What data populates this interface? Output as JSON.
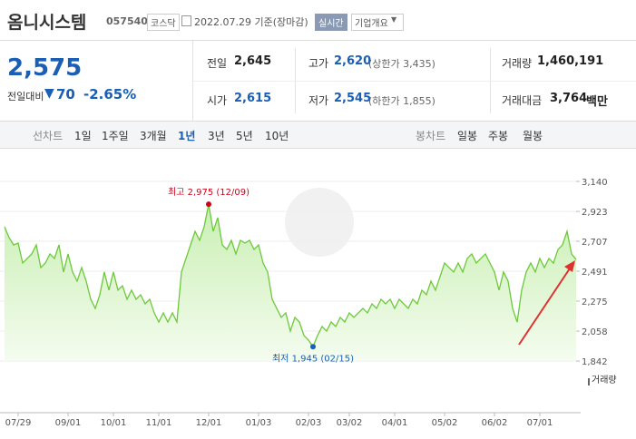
{
  "header": {
    "name": "옴니시스템",
    "code": "057540",
    "market": "코스닥",
    "date": "2022.07.29 기준(장마감)",
    "realtime": "실시간",
    "company": "기업개요"
  },
  "price": {
    "current": "2,575",
    "change_label": "전일대비",
    "change": "70",
    "change_pct": "-2.65%"
  },
  "stats": [
    {
      "label": "전일",
      "value": "2,645"
    },
    {
      "label": "고가",
      "value": "2,620",
      "note": "(상한가 3,435)"
    },
    {
      "label": "거래량",
      "value": "1,460,191"
    },
    {
      "label": "시가",
      "value": "2,615"
    },
    {
      "label": "저가",
      "value": "2,545",
      "note": "(하한가 1,855)"
    },
    {
      "label": "거래대금",
      "value": "3,764",
      "unit": "백만"
    }
  ],
  "tabs": {
    "line_label": "선차트",
    "periods": [
      "1일",
      "1주일",
      "3개월",
      "1년",
      "3년",
      "5년",
      "10년"
    ],
    "active": "1년",
    "candle_label": "봉차트",
    "candles": [
      "일봉",
      "주봉",
      "월봉"
    ]
  },
  "chart_data": {
    "type": "line",
    "color": "#6cc93a",
    "values": [
      2812,
      2734,
      2681,
      2694,
      2550,
      2583,
      2616,
      2681,
      2517,
      2550,
      2616,
      2583,
      2681,
      2485,
      2616,
      2485,
      2419,
      2517,
      2419,
      2288,
      2222,
      2321,
      2485,
      2354,
      2485,
      2354,
      2386,
      2288,
      2354,
      2288,
      2321,
      2255,
      2288,
      2190,
      2124,
      2190,
      2124,
      2190,
      2124,
      2485,
      2583,
      2681,
      2779,
      2714,
      2812,
      2975,
      2779,
      2878,
      2681,
      2648,
      2714,
      2616,
      2714,
      2694,
      2714,
      2648,
      2681,
      2550,
      2485,
      2288,
      2222,
      2157,
      2190,
      2058,
      2157,
      2124,
      2026,
      1993,
      1945,
      2026,
      2091,
      2058,
      2124,
      2091,
      2157,
      2124,
      2190,
      2157,
      2190,
      2222,
      2190,
      2255,
      2222,
      2288,
      2255,
      2288,
      2222,
      2288,
      2255,
      2222,
      2288,
      2255,
      2354,
      2321,
      2419,
      2354,
      2452,
      2550,
      2517,
      2485,
      2550,
      2485,
      2583,
      2616,
      2550,
      2583,
      2616,
      2550,
      2485,
      2354,
      2485,
      2419,
      2222,
      2124,
      2354,
      2485,
      2550,
      2485,
      2583,
      2517,
      2583,
      2550,
      2648,
      2681,
      2779,
      2616,
      2575
    ],
    "xlim": [
      0,
      126
    ],
    "xticks": [
      {
        "value": 3,
        "label": "07/29"
      },
      {
        "value": 14,
        "label": "09/01"
      },
      {
        "value": 24,
        "label": "10/01"
      },
      {
        "value": 34,
        "label": "11/01"
      },
      {
        "value": 45,
        "label": "12/01"
      },
      {
        "value": 56,
        "label": "01/03"
      },
      {
        "value": 67,
        "label": "02/03"
      },
      {
        "value": 76,
        "label": "03/02"
      },
      {
        "value": 86,
        "label": "04/01"
      },
      {
        "value": 97,
        "label": "05/02"
      },
      {
        "value": 108,
        "label": "06/02"
      },
      {
        "value": 118,
        "label": "07/01"
      }
    ],
    "ylim": [
      1842,
      3140
    ],
    "yticks": [
      {
        "value": 3140,
        "label": "3,140"
      },
      {
        "value": 2923,
        "label": "2,923"
      },
      {
        "value": 2707,
        "label": "2,707"
      },
      {
        "value": 2491,
        "label": "2,491"
      },
      {
        "value": 2275,
        "label": "2,275"
      },
      {
        "value": 2058,
        "label": "2,058"
      },
      {
        "value": 1842,
        "label": "1,842"
      }
    ],
    "grid": true,
    "annotations": [
      {
        "label": "최고 2,975 (12/09)",
        "x": 45,
        "value": 2975,
        "color": "#d0021b"
      },
      {
        "label": "최저 1,945 (02/15)",
        "x": 68,
        "value": 1945,
        "color": "#1a5fb4"
      }
    ],
    "volume_label": "거래량"
  }
}
